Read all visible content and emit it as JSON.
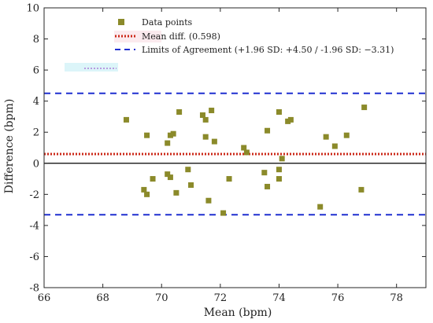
{
  "chart_data": {
    "type": "scatter",
    "xlabel": "Mean (bpm)",
    "ylabel": "Difference (bpm)",
    "xlim": [
      66,
      79
    ],
    "ylim": [
      -8,
      10
    ],
    "xticks": [
      66,
      68,
      70,
      72,
      74,
      76,
      78
    ],
    "yticks": [
      -8,
      -6,
      -4,
      -2,
      0,
      2,
      4,
      6,
      8,
      10
    ],
    "grid": false,
    "legend_position": "top-center",
    "series": [
      {
        "name": "Data points",
        "color": "#8b8a2a",
        "marker": "square",
        "x": [
          68.8,
          69.4,
          69.5,
          69.5,
          69.7,
          70.2,
          70.2,
          70.3,
          70.3,
          70.4,
          70.5,
          70.6,
          70.9,
          71.0,
          71.4,
          71.5,
          71.5,
          71.6,
          71.7,
          71.8,
          72.1,
          72.3,
          72.8,
          72.9,
          73.5,
          73.6,
          73.6,
          74.0,
          74.0,
          74.0,
          74.1,
          74.3,
          74.4,
          75.4,
          75.6,
          75.9,
          76.3,
          76.8,
          76.9
        ],
        "y": [
          2.8,
          -1.7,
          -2.0,
          1.8,
          -1.0,
          1.3,
          -0.7,
          1.8,
          -0.9,
          1.9,
          -1.9,
          3.3,
          -0.4,
          -1.4,
          3.1,
          1.7,
          2.8,
          -2.4,
          3.4,
          1.4,
          -3.2,
          -1.0,
          1.0,
          0.7,
          -0.6,
          2.1,
          -1.5,
          3.3,
          -1.0,
          -0.4,
          0.3,
          2.7,
          2.8,
          -2.8,
          1.7,
          1.1,
          1.8,
          -1.7,
          3.6
        ]
      }
    ],
    "lines": [
      {
        "name": "Mean diff. (0.598)",
        "y": 0.598,
        "color": "#cc2a1a",
        "style": "dotted"
      },
      {
        "name": "Limits of Agreement (+1.96 SD: +4.50 / -1.96 SD: −3.31)",
        "y": [
          4.5,
          -3.31
        ],
        "color": "#1f2fd0",
        "style": "dashed"
      },
      {
        "name": "",
        "y": 0,
        "color": "#000000",
        "style": "solid"
      }
    ]
  }
}
